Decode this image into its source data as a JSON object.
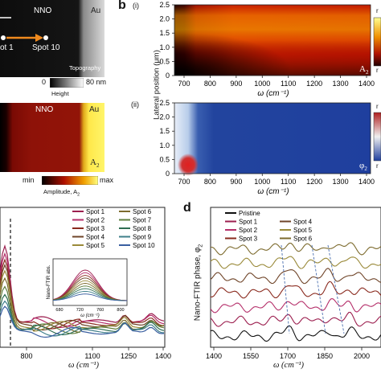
{
  "panel_a": {
    "topo_labels": {
      "left": "NNO",
      "right": "Au",
      "spot_start": "ot 1",
      "spot_end": "Spot 10",
      "caption": "Topography"
    },
    "height_bar": {
      "zero": "0",
      "max": "80 nm",
      "label": "Height"
    },
    "amp_labels": {
      "left": "NNO",
      "right": "Au",
      "signal": "A",
      "signal_sub": "2"
    },
    "amp_bar": {
      "min": "min",
      "max": "max",
      "label": "Amplitude, A",
      "label_sub": "2"
    }
  },
  "panel_b": {
    "letter": "b",
    "i_label": "(i)",
    "ii_label": "(ii)",
    "ylabel": "Lateral position (μm)",
    "yticks": [
      "2.5",
      "2.0",
      "1.5",
      "1.0",
      "0.5",
      "0"
    ],
    "xticks": [
      "700",
      "800",
      "900",
      "1000",
      "1100",
      "1200",
      "1300",
      "1400"
    ],
    "xlabel": "ω (cm⁻¹)",
    "map_i_tag": "A",
    "map_i_tag_sub": "2",
    "map_ii_tag": "φ",
    "map_ii_tag_sub": "2",
    "cbar_i_top": "r",
    "cbar_i_bot": "r",
    "cbar_ii_top": "r",
    "cbar_ii_bot": "r",
    "colors": {
      "hot_dark": "#2a0000",
      "hot_mid": "#d42a00",
      "hot_bright": "#ffb000",
      "blue_bg": "#1f3f9e",
      "blue_light": "#cfe0f5"
    }
  },
  "panel_c": {
    "xticks": [
      "800",
      "1100",
      "1250",
      "1400"
    ],
    "xlabel": "ω (cm⁻¹)",
    "legend": [
      {
        "name": "Spot 1",
        "color": "#9c1f4f"
      },
      {
        "name": "Spot 2",
        "color": "#b52f6a"
      },
      {
        "name": "Spot 3",
        "color": "#8a2a1e"
      },
      {
        "name": "Spot 4",
        "color": "#6f4428"
      },
      {
        "name": "Spot 5",
        "color": "#9a8a3a"
      },
      {
        "name": "Spot 6",
        "color": "#7d6b2e"
      },
      {
        "name": "Spot 7",
        "color": "#5f7f3f"
      },
      {
        "name": "Spot 8",
        "color": "#2f6e52"
      },
      {
        "name": "Spot 9",
        "color": "#3f7f8a"
      },
      {
        "name": "Spot 10",
        "color": "#3a5fa0"
      }
    ],
    "inset": {
      "ylabel": "Nano-FTIR abs.",
      "xticks": [
        "680",
        "720",
        "760",
        "800"
      ],
      "xlabel": "ω (cm⁻¹)"
    }
  },
  "panel_d": {
    "letter": "d",
    "ylabel": "Nano-FTIR phase, φ",
    "ylabel_sub": "2",
    "xticks": [
      "1400",
      "1550",
      "1700",
      "1850",
      "2000"
    ],
    "xlabel": "ω (cm⁻¹)",
    "legend": [
      {
        "name": "Pristine",
        "color": "#111111"
      },
      {
        "name": "Spot 1",
        "color": "#9c1f4f"
      },
      {
        "name": "Spot 2",
        "color": "#b52f6a"
      },
      {
        "name": "Spot 3",
        "color": "#8a2a1e"
      },
      {
        "name": "Spot 4",
        "color": "#6f4428"
      },
      {
        "name": "Spot 5",
        "color": "#9a8a3a"
      },
      {
        "name": "Spot 6",
        "color": "#7d6b2e"
      }
    ]
  }
}
